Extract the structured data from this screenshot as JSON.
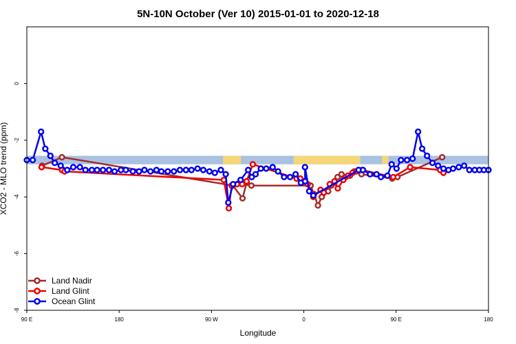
{
  "chart_data": {
    "type": "line",
    "title": "5N-10N October (Ver 10)   2015-01-01 to 2020-12-18",
    "xlabel": "Longitude",
    "ylabel": "XCO2 - MLO trend (ppm)",
    "xlim": [
      90,
      450
    ],
    "ylim": [
      -8,
      2
    ],
    "x_ticks": [
      {
        "value": 90,
        "label": "90 E"
      },
      {
        "value": 162,
        "label": "180"
      },
      {
        "value": 234,
        "label": "90 W"
      },
      {
        "value": 306,
        "label": "0"
      },
      {
        "value": 378,
        "label": "90 E"
      },
      {
        "value": 450,
        "label": "180"
      }
    ],
    "y_ticks": [
      {
        "value": 0,
        "label": "0"
      },
      {
        "value": -2,
        "label": "-2"
      },
      {
        "value": -4,
        "label": "-4"
      },
      {
        "value": -6,
        "label": "-6"
      },
      {
        "value": -8,
        "label": "-8"
      }
    ],
    "background_band": {
      "y_range": [
        -2.85,
        -2.55
      ],
      "ocean_color": "#a9c2e2",
      "land_color": "#f5d77a",
      "land_segments": [
        [
          243,
          249
        ],
        [
          249,
          255
        ],
        [
          254,
          257
        ],
        [
          298,
          350
        ],
        [
          367,
          372
        ]
      ]
    },
    "legend_position": "bottom-left",
    "series": [
      {
        "name": "Land Nadir",
        "color": "#a52a2a",
        "points": [
          [
            101.9,
            -2.9
          ],
          [
            117.4,
            -2.6
          ],
          [
            250.7,
            -3.6
          ],
          [
            258.2,
            -4.05
          ],
          [
            261.4,
            -3.5
          ],
          [
            265.1,
            -3.6
          ],
          [
            311.3,
            -3.6
          ],
          [
            313.9,
            -3.9
          ],
          [
            317.0,
            -4.3
          ],
          [
            320.0,
            -4.0
          ],
          [
            325.0,
            -3.8
          ],
          [
            327.4,
            -3.6
          ],
          [
            329.9,
            -3.5
          ],
          [
            332.3,
            -3.3
          ],
          [
            335.4,
            -3.2
          ],
          [
            338.6,
            -3.3
          ],
          [
            342.0,
            -3.25
          ],
          [
            345.3,
            -3.1
          ],
          [
            348.7,
            -3.05
          ],
          [
            351.0,
            -3.2
          ],
          [
            374.9,
            -3.35
          ],
          [
            379.0,
            -3.3
          ],
          [
            413.9,
            -2.6
          ]
        ]
      },
      {
        "name": "Land Glint",
        "color": "#ee0000",
        "points": [
          [
            101.5,
            -2.95
          ],
          [
            117.4,
            -3.05
          ],
          [
            119.4,
            -3.1
          ],
          [
            243.6,
            -3.4
          ],
          [
            247.5,
            -4.4
          ],
          [
            249.7,
            -3.6
          ],
          [
            253.9,
            -3.55
          ],
          [
            257.9,
            -3.55
          ],
          [
            261.4,
            -3.45
          ],
          [
            266.2,
            -2.85
          ],
          [
            300.3,
            -3.35
          ],
          [
            303.3,
            -3.35
          ],
          [
            306.0,
            -3.45
          ],
          [
            309.0,
            -3.55
          ],
          [
            313.4,
            -4.0
          ],
          [
            319.0,
            -3.75
          ],
          [
            321.6,
            -3.85
          ],
          [
            326.2,
            -3.55
          ],
          [
            329.9,
            -3.45
          ],
          [
            332.5,
            -3.7
          ],
          [
            336.8,
            -3.4
          ],
          [
            340.4,
            -3.25
          ],
          [
            344.0,
            -3.15
          ],
          [
            347.0,
            -3.1
          ],
          [
            351.4,
            -3.05
          ],
          [
            375.7,
            -3.3
          ],
          [
            388.9,
            -2.95
          ],
          [
            412.3,
            -3.05
          ],
          [
            414.9,
            -3.15
          ]
        ]
      },
      {
        "name": "Ocean Glint",
        "color": "#0000ee",
        "points": [
          [
            90.0,
            -2.7
          ],
          [
            94.6,
            -2.7
          ],
          [
            101.1,
            -1.7
          ],
          [
            104.4,
            -2.3
          ],
          [
            108.4,
            -2.55
          ],
          [
            111.8,
            -2.8
          ],
          [
            116.4,
            -2.9
          ],
          [
            121.5,
            -3.05
          ],
          [
            126.2,
            -2.95
          ],
          [
            131.4,
            -2.95
          ],
          [
            135.7,
            -3.05
          ],
          [
            140.7,
            -3.05
          ],
          [
            144.8,
            -3.05
          ],
          [
            149.4,
            -3.05
          ],
          [
            154.1,
            -3.05
          ],
          [
            158.4,
            -3.1
          ],
          [
            163.4,
            -3.05
          ],
          [
            167.2,
            -3.05
          ],
          [
            172.7,
            -3.1
          ],
          [
            177.5,
            -3.1
          ],
          [
            181.7,
            -3.05
          ],
          [
            186.4,
            -3.1
          ],
          [
            191.1,
            -3.05
          ],
          [
            194.9,
            -3.1
          ],
          [
            199.9,
            -3.1
          ],
          [
            204.7,
            -3.1
          ],
          [
            209.4,
            -3.05
          ],
          [
            214.1,
            -3.05
          ],
          [
            218.4,
            -3.05
          ],
          [
            223.2,
            -3.0
          ],
          [
            227.6,
            -3.05
          ],
          [
            232.4,
            -3.1
          ],
          [
            236.6,
            -3.15
          ],
          [
            241.3,
            -3.05
          ],
          [
            245.1,
            -3.2
          ],
          [
            247.1,
            -4.2
          ],
          [
            250.8,
            -3.55
          ],
          [
            256.7,
            -3.4
          ],
          [
            262.6,
            -3.05
          ],
          [
            265.4,
            -3.3
          ],
          [
            268.4,
            -3.2
          ],
          [
            272.5,
            -3.0
          ],
          [
            276.7,
            -3.0
          ],
          [
            281.7,
            -2.95
          ],
          [
            285.9,
            -3.1
          ],
          [
            290.6,
            -3.3
          ],
          [
            295.3,
            -3.3
          ],
          [
            299.6,
            -3.2
          ],
          [
            303.7,
            -3.5
          ],
          [
            307.0,
            -3.45
          ],
          [
            306.9,
            -2.95
          ],
          [
            310.2,
            -3.8
          ],
          [
            313.4,
            -3.95
          ],
          [
            348.7,
            -3.05
          ],
          [
            352.1,
            -3.05
          ],
          [
            357.6,
            -3.2
          ],
          [
            362.7,
            -3.2
          ],
          [
            366.1,
            -3.3
          ],
          [
            371.2,
            -3.25
          ],
          [
            374.5,
            -2.85
          ],
          [
            378.3,
            -3.0
          ],
          [
            381.8,
            -2.7
          ],
          [
            386.5,
            -2.7
          ],
          [
            390.8,
            -2.65
          ],
          [
            395.1,
            -1.7
          ],
          [
            398.3,
            -2.3
          ],
          [
            402.1,
            -2.55
          ],
          [
            406.3,
            -2.8
          ],
          [
            410.7,
            -2.9
          ],
          [
            414.9,
            -3.0
          ],
          [
            418.8,
            -3.05
          ],
          [
            422.4,
            -3.0
          ],
          [
            426.8,
            -2.95
          ],
          [
            431.0,
            -2.9
          ],
          [
            435.1,
            -3.05
          ],
          [
            439.3,
            -3.05
          ],
          [
            442.9,
            -3.05
          ],
          [
            446.4,
            -3.05
          ],
          [
            450.0,
            -3.05
          ]
        ]
      }
    ]
  }
}
